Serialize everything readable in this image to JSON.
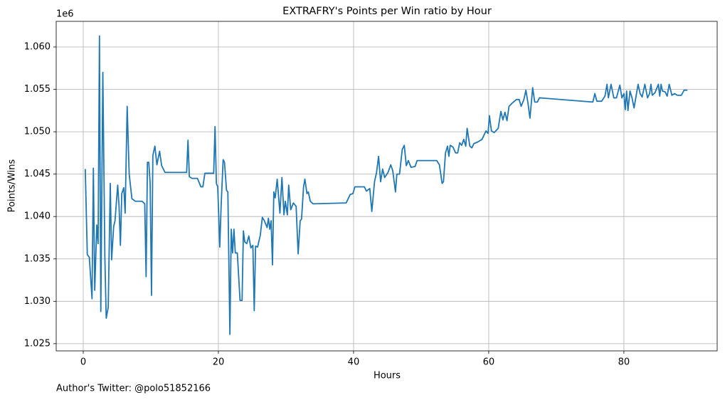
{
  "chart_data": {
    "type": "line",
    "title": "EXTRAFRY's Points per Win ratio by Hour",
    "xlabel": "Hours",
    "ylabel": "Points/Wins",
    "y_offset_label": "1e6",
    "footer": "Author's Twitter: @polo51852166",
    "color": "#1f77b4",
    "grid": true,
    "xlim": [
      -4,
      93.8
    ],
    "ylim": [
      1.02415,
      1.06302
    ],
    "xticks": [
      0,
      20,
      40,
      60,
      80
    ],
    "yticks": [
      {
        "value": 1.025,
        "label": "1.025"
      },
      {
        "value": 1.03,
        "label": "1.030"
      },
      {
        "value": 1.035,
        "label": "1.035"
      },
      {
        "value": 1.04,
        "label": "1.040"
      },
      {
        "value": 1.045,
        "label": "1.045"
      },
      {
        "value": 1.05,
        "label": "1.050"
      },
      {
        "value": 1.055,
        "label": "1.055"
      },
      {
        "value": 1.06,
        "label": "1.060"
      }
    ],
    "x": [
      0.3,
      0.6,
      0.9,
      1.3,
      1.5,
      1.7,
      2.0,
      2.2,
      2.4,
      2.6,
      2.9,
      3.2,
      3.4,
      3.7,
      4.0,
      4.2,
      4.5,
      4.7,
      5.1,
      5.3,
      5.5,
      5.7,
      6.0,
      6.2,
      6.5,
      6.8,
      7.2,
      7.7,
      8.5,
      8.7,
      9.1,
      9.3,
      9.5,
      9.7,
      9.9,
      10.1,
      10.3,
      10.6,
      10.9,
      11.3,
      11.6,
      12.1,
      15.3,
      15.5,
      15.7,
      16.1,
      16.9,
      17.4,
      17.7,
      18.0,
      19.3,
      19.5,
      19.7,
      19.9,
      20.2,
      20.4,
      20.7,
      20.9,
      21.2,
      21.4,
      21.7,
      21.9,
      22.1,
      22.3,
      22.5,
      22.8,
      23.2,
      23.5,
      23.7,
      23.9,
      24.2,
      24.5,
      24.8,
      25.1,
      25.3,
      25.5,
      25.8,
      26.2,
      26.5,
      26.8,
      27.2,
      27.4,
      27.6,
      27.8,
      28.0,
      28.2,
      28.4,
      28.7,
      29.1,
      29.4,
      29.7,
      29.9,
      30.2,
      30.4,
      30.7,
      31.1,
      31.5,
      31.8,
      32.1,
      32.3,
      32.6,
      32.8,
      33.1,
      33.3,
      33.6,
      34.0,
      38.9,
      39.5,
      39.9,
      40.2,
      41.6,
      41.9,
      42.4,
      42.7,
      43.1,
      43.4,
      43.7,
      44.0,
      44.3,
      44.6,
      45.1,
      45.5,
      45.8,
      46.2,
      46.4,
      46.8,
      47.2,
      47.5,
      47.8,
      48.1,
      48.5,
      49.1,
      49.4,
      52.3,
      52.7,
      53.1,
      53.3,
      53.6,
      53.9,
      54.1,
      54.3,
      54.7,
      55.1,
      55.4,
      55.7,
      56.0,
      56.3,
      56.6,
      56.8,
      57.2,
      57.5,
      57.8,
      58.4,
      59.0,
      59.6,
      59.9,
      60.1,
      60.4,
      60.8,
      61.4,
      61.8,
      62.1,
      62.4,
      62.7,
      63.0,
      63.5,
      64.1,
      64.5,
      64.8,
      65.2,
      65.5,
      65.8,
      66.1,
      66.5,
      66.8,
      67.2,
      67.5,
      75.4,
      75.7,
      76.0,
      76.7,
      77.2,
      77.5,
      77.7,
      78.1,
      78.5,
      78.9,
      79.4,
      79.7,
      80.0,
      80.2,
      80.4,
      80.6,
      80.9,
      81.2,
      81.5,
      81.8,
      82.1,
      82.4,
      82.7,
      83.1,
      83.5,
      83.8,
      84.0,
      84.2,
      84.6,
      85.1,
      85.3,
      85.5,
      85.7,
      86.1,
      86.4,
      86.7,
      87.1,
      87.5,
      87.9,
      88.5,
      88.9,
      89.4
    ],
    "values": [
      1.0456,
      1.0355,
      1.0352,
      1.0303,
      1.0457,
      1.0313,
      1.039,
      1.0368,
      1.0613,
      1.0288,
      1.057,
      1.0352,
      1.028,
      1.0293,
      1.0439,
      1.0349,
      1.0388,
      1.0395,
      1.0437,
      1.0412,
      1.0366,
      1.0427,
      1.0434,
      1.0404,
      1.053,
      1.045,
      1.0421,
      1.0418,
      1.0418,
      1.0418,
      1.0415,
      1.0329,
      1.0464,
      1.0464,
      1.0439,
      1.0307,
      1.0472,
      1.0483,
      1.0461,
      1.0477,
      1.046,
      1.0452,
      1.0452,
      1.049,
      1.0447,
      1.0445,
      1.0445,
      1.0435,
      1.0435,
      1.0451,
      1.0451,
      1.0506,
      1.0439,
      1.0435,
      1.0364,
      1.0412,
      1.0467,
      1.0464,
      1.0431,
      1.0429,
      1.0261,
      1.0385,
      1.0357,
      1.0385,
      1.0357,
      1.0357,
      1.0301,
      1.0301,
      1.0383,
      1.037,
      1.0368,
      1.0377,
      1.0363,
      1.0366,
      1.0289,
      1.0365,
      1.0364,
      1.0378,
      1.0399,
      1.0395,
      1.0387,
      1.0398,
      1.0385,
      1.0395,
      1.0343,
      1.0429,
      1.0422,
      1.0444,
      1.0404,
      1.0446,
      1.0402,
      1.0418,
      1.0402,
      1.0437,
      1.0408,
      1.0416,
      1.0412,
      1.0356,
      1.0395,
      1.0397,
      1.0435,
      1.0444,
      1.0427,
      1.0429,
      1.0418,
      1.0415,
      1.0416,
      1.0426,
      1.0427,
      1.0435,
      1.0435,
      1.043,
      1.0433,
      1.0406,
      1.0441,
      1.0452,
      1.0471,
      1.0441,
      1.0456,
      1.0446,
      1.0452,
      1.0461,
      1.0454,
      1.0429,
      1.045,
      1.045,
      1.0479,
      1.0484,
      1.046,
      1.0466,
      1.0458,
      1.0459,
      1.0466,
      1.0466,
      1.0461,
      1.0439,
      1.0441,
      1.0475,
      1.0483,
      1.0471,
      1.0484,
      1.0482,
      1.0475,
      1.0475,
      1.0487,
      1.0484,
      1.0491,
      1.0483,
      1.0504,
      1.0483,
      1.0481,
      1.0486,
      1.0488,
      1.0491,
      1.0501,
      1.0498,
      1.0519,
      1.0501,
      1.0499,
      1.0504,
      1.0524,
      1.0514,
      1.0523,
      1.0513,
      1.053,
      1.0534,
      1.0538,
      1.0538,
      1.053,
      1.0538,
      1.0549,
      1.0534,
      1.0516,
      1.0552,
      1.0535,
      1.0535,
      1.054,
      1.0535,
      1.0545,
      1.0536,
      1.0536,
      1.0542,
      1.0556,
      1.054,
      1.0556,
      1.054,
      1.054,
      1.0555,
      1.054,
      1.0545,
      1.0526,
      1.0548,
      1.0525,
      1.0548,
      1.054,
      1.0528,
      1.0542,
      1.0556,
      1.0545,
      1.0541,
      1.0556,
      1.054,
      1.0545,
      1.0556,
      1.0543,
      1.0546,
      1.0556,
      1.0542,
      1.0556,
      1.0548,
      1.0547,
      1.0542,
      1.0556,
      1.0543,
      1.0545,
      1.0543,
      1.0543,
      1.0549,
      1.0549
    ]
  }
}
